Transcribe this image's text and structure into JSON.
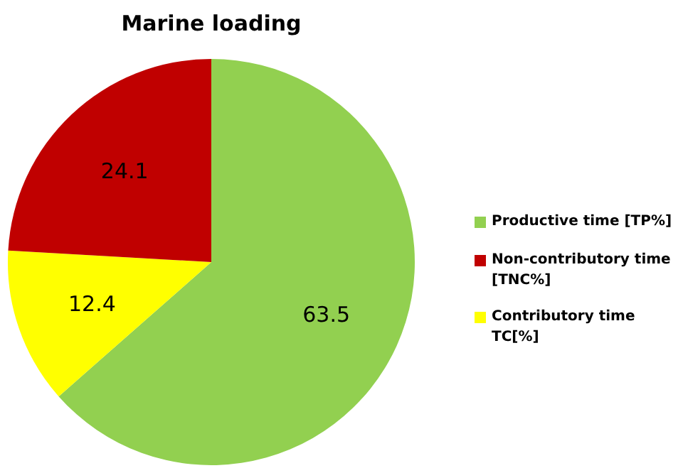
{
  "chart_data": {
    "type": "pie",
    "title": "Marine loading",
    "categories": [
      "Productive time [TP%]",
      "Contributory time TC[%]",
      "Non-contributory time [TNC%]"
    ],
    "values": [
      63.5,
      12.4,
      24.1
    ],
    "colors": [
      "#92d050",
      "#ffff00",
      "#c00000"
    ],
    "data_labels": true,
    "legend": "right"
  }
}
